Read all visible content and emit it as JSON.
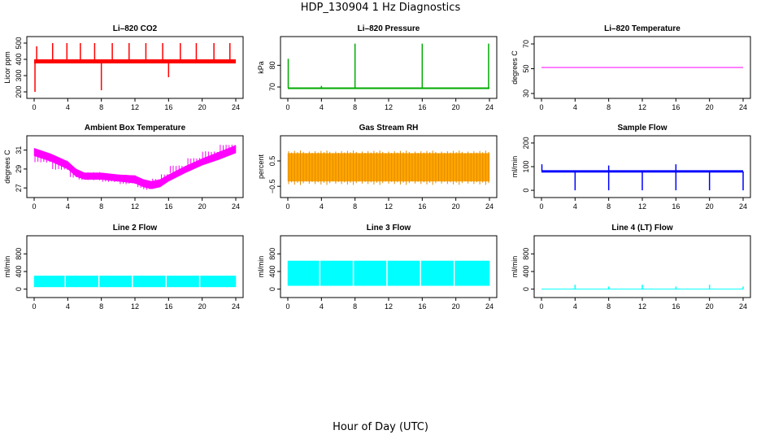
{
  "figure": {
    "title": "HDP_130904  1 Hz Diagnostics",
    "xlabel": "Hour of Day (UTC)"
  },
  "chart_data": [
    {
      "type": "line",
      "title": "Li–820 CO2",
      "ylabel": "Licor ppm",
      "color": "#ff0000",
      "xlim": [
        0,
        24
      ],
      "ylim": [
        190,
        510
      ],
      "xticks": [
        0,
        4,
        8,
        12,
        16,
        20,
        24
      ],
      "yticks": [
        200,
        300,
        400,
        500
      ],
      "ytick_labels": [
        "200",
        "300",
        "400",
        "500"
      ],
      "baseline": 390,
      "band": [
        375,
        400
      ],
      "spikes": [
        [
          0.1,
          200
        ],
        [
          0.3,
          480
        ],
        [
          2.2,
          500
        ],
        [
          3.9,
          500
        ],
        [
          5.5,
          500
        ],
        [
          7.2,
          500
        ],
        [
          8.0,
          210
        ],
        [
          9.3,
          500
        ],
        [
          11.3,
          500
        ],
        [
          13.3,
          500
        ],
        [
          15.3,
          500
        ],
        [
          16.0,
          290
        ],
        [
          17.4,
          500
        ],
        [
          19.3,
          500
        ],
        [
          21.4,
          500
        ],
        [
          23.3,
          500
        ]
      ]
    },
    {
      "type": "line",
      "title": "Li–820 Pressure",
      "ylabel": "kPa",
      "color": "#00aa00",
      "xlim": [
        0,
        24
      ],
      "ylim": [
        67,
        91
      ],
      "xticks": [
        0,
        4,
        8,
        12,
        16,
        20,
        24
      ],
      "yticks": [
        70,
        80
      ],
      "ytick_labels": [
        "70",
        "80"
      ],
      "baseline": 69.5,
      "band": [
        69.2,
        69.8
      ],
      "spikes": [
        [
          0.05,
          83
        ],
        [
          4.0,
          70.5
        ],
        [
          8.0,
          90
        ],
        [
          16.0,
          90
        ],
        [
          23.9,
          90
        ]
      ]
    },
    {
      "type": "line",
      "title": "Li–820 Temperature",
      "ylabel": "degrees C",
      "color": "#ff00ff",
      "xlim": [
        0,
        24
      ],
      "ylim": [
        30,
        72
      ],
      "xticks": [
        0,
        4,
        8,
        12,
        16,
        20,
        24
      ],
      "yticks": [
        30,
        50,
        70
      ],
      "ytick_labels": [
        "30",
        "50",
        "70"
      ],
      "baseline": 51,
      "band": [
        51,
        51
      ],
      "spikes": []
    },
    {
      "type": "area",
      "title": "Ambient Box Temperature",
      "ylabel": "degrees C",
      "color": "#ff00ff",
      "xlim": [
        0,
        24
      ],
      "ylim": [
        26.5,
        32
      ],
      "xticks": [
        0,
        4,
        8,
        12,
        16,
        20,
        24
      ],
      "yticks": [
        27,
        29,
        31
      ],
      "ytick_labels": [
        "27",
        "29",
        "31"
      ],
      "x": [
        0,
        2,
        4,
        5,
        6,
        8,
        10,
        12,
        13,
        14,
        15,
        16,
        18,
        20,
        22,
        24
      ],
      "y_low": [
        30.4,
        29.8,
        29.0,
        28.2,
        27.9,
        27.9,
        27.7,
        27.5,
        27.1,
        26.9,
        27.1,
        27.7,
        28.6,
        29.4,
        30.0,
        30.7
      ],
      "y_high": [
        31.2,
        30.6,
        29.8,
        29.0,
        28.6,
        28.6,
        28.4,
        28.3,
        27.9,
        27.7,
        27.9,
        28.4,
        29.3,
        30.1,
        30.8,
        31.5
      ]
    },
    {
      "type": "area",
      "title": "Gas Stream RH",
      "ylabel": "percent",
      "color": "#ffa500",
      "xlim": [
        0,
        24
      ],
      "ylim": [
        -0.75,
        1.3
      ],
      "xticks": [
        0,
        4,
        8,
        12,
        16,
        20,
        24
      ],
      "yticks": [
        -0.5,
        0.5
      ],
      "ytick_labels": [
        "−0.5",
        "0.5"
      ],
      "x": [
        0,
        24
      ],
      "y_low": [
        -0.3,
        -0.3
      ],
      "y_high": [
        0.8,
        0.8
      ]
    },
    {
      "type": "line",
      "title": "Sample Flow",
      "ylabel": "ml/min",
      "color": "#0000ff",
      "xlim": [
        0,
        24
      ],
      "ylim": [
        -10,
        210
      ],
      "xticks": [
        0,
        4,
        8,
        12,
        16,
        20,
        24
      ],
      "yticks": [
        0,
        100,
        200
      ],
      "ytick_labels": [
        "0",
        "100",
        "200"
      ],
      "baseline": 80,
      "band": [
        75,
        85
      ],
      "spikes": [
        [
          0.05,
          110
        ],
        [
          4.0,
          0
        ],
        [
          8.0,
          0
        ],
        [
          8.0,
          105
        ],
        [
          12.0,
          0
        ],
        [
          16.0,
          0
        ],
        [
          16.0,
          110
        ],
        [
          20.0,
          0
        ],
        [
          24.0,
          0
        ]
      ]
    },
    {
      "type": "area",
      "title": "Line 2 Flow",
      "ylabel": "ml/min",
      "color": "#00ffff",
      "xlim": [
        0,
        24
      ],
      "ylim": [
        -80,
        1100
      ],
      "xticks": [
        0,
        4,
        8,
        12,
        16,
        20,
        24
      ],
      "yticks": [
        0,
        400,
        800
      ],
      "ytick_labels": [
        "0",
        "400",
        "800"
      ],
      "x": [
        0,
        24
      ],
      "y_low": [
        50,
        50
      ],
      "y_high": [
        300,
        300
      ],
      "gaps": [
        3.7,
        7.7,
        11.7,
        15.7,
        19.7
      ]
    },
    {
      "type": "area",
      "title": "Line 3 Flow",
      "ylabel": "ml/min",
      "color": "#00ffff",
      "xlim": [
        0,
        24
      ],
      "ylim": [
        -80,
        1100
      ],
      "xticks": [
        0,
        4,
        8,
        12,
        16,
        20,
        24
      ],
      "yticks": [
        0,
        400,
        800
      ],
      "ytick_labels": [
        "0",
        "400",
        "800"
      ],
      "x": [
        0,
        24
      ],
      "y_low": [
        80,
        80
      ],
      "y_high": [
        640,
        640
      ],
      "gaps": [
        3.8,
        7.8,
        11.8,
        15.8,
        19.8
      ]
    },
    {
      "type": "line",
      "title": "Line 4 (LT) Flow",
      "ylabel": "ml/min",
      "color": "#00ffff",
      "xlim": [
        0,
        24
      ],
      "ylim": [
        -80,
        1100
      ],
      "xticks": [
        0,
        4,
        8,
        12,
        16,
        20,
        24
      ],
      "yticks": [
        0,
        400,
        800
      ],
      "ytick_labels": [
        "0",
        "400",
        "800"
      ],
      "baseline": 0,
      "band": [
        0,
        0
      ],
      "spikes": [
        [
          4.0,
          100
        ],
        [
          8.0,
          60
        ],
        [
          12.0,
          100
        ],
        [
          16.0,
          60
        ],
        [
          20.0,
          100
        ],
        [
          24.0,
          60
        ]
      ]
    }
  ]
}
